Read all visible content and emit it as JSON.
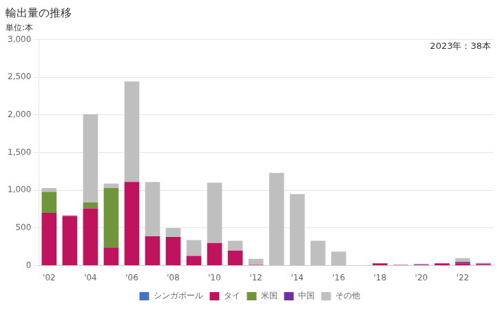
{
  "chart_data": {
    "type": "bar",
    "title": "輸出量の推移",
    "subtitle": "単位:本",
    "annotation": "2023年：38本",
    "categories": [
      "'02",
      null,
      "'04",
      null,
      "'06",
      null,
      "'08",
      null,
      "'10",
      null,
      "'12",
      null,
      "'14",
      null,
      "'16",
      null,
      "'18",
      null,
      "'20",
      null,
      "'22",
      null
    ],
    "series": [
      {
        "name": "シンガポール",
        "color": "#4472c4",
        "values": [
          0,
          0,
          0,
          0,
          0,
          0,
          0,
          0,
          0,
          0,
          0,
          0,
          0,
          0,
          0,
          0,
          0,
          0,
          0,
          0,
          5,
          10
        ]
      },
      {
        "name": "タイ",
        "color": "#c0135e",
        "values": [
          700,
          660,
          760,
          240,
          1110,
          390,
          380,
          130,
          300,
          200,
          10,
          0,
          0,
          0,
          0,
          0,
          30,
          10,
          10,
          30,
          20,
          15
        ]
      },
      {
        "name": "米国",
        "color": "#70963c",
        "values": [
          280,
          0,
          80,
          790,
          0,
          0,
          0,
          0,
          0,
          0,
          0,
          0,
          0,
          0,
          0,
          0,
          0,
          0,
          0,
          0,
          0,
          0
        ]
      },
      {
        "name": "中国",
        "color": "#7030a0",
        "values": [
          0,
          0,
          0,
          0,
          5,
          0,
          0,
          0,
          0,
          0,
          0,
          0,
          0,
          0,
          0,
          0,
          0,
          0,
          10,
          0,
          25,
          0
        ]
      },
      {
        "name": "その他",
        "color": "#c0bfbf",
        "values": [
          50,
          10,
          1170,
          60,
          1330,
          720,
          120,
          210,
          800,
          130,
          80,
          1230,
          950,
          330,
          185,
          0,
          0,
          0,
          0,
          0,
          50,
          13
        ]
      }
    ],
    "stacked": true,
    "ylim": [
      0,
      3000
    ],
    "yticks": [
      0,
      500,
      {
        "value": 1000,
        "label": "1,000"
      },
      {
        "value": 1500,
        "label": "1,500"
      },
      {
        "value": 2000,
        "label": "2,000"
      },
      {
        "value": 2500,
        "label": "2,500"
      },
      {
        "value": 3000,
        "label": "3,000"
      }
    ],
    "grid": true,
    "legend": "bottom"
  }
}
